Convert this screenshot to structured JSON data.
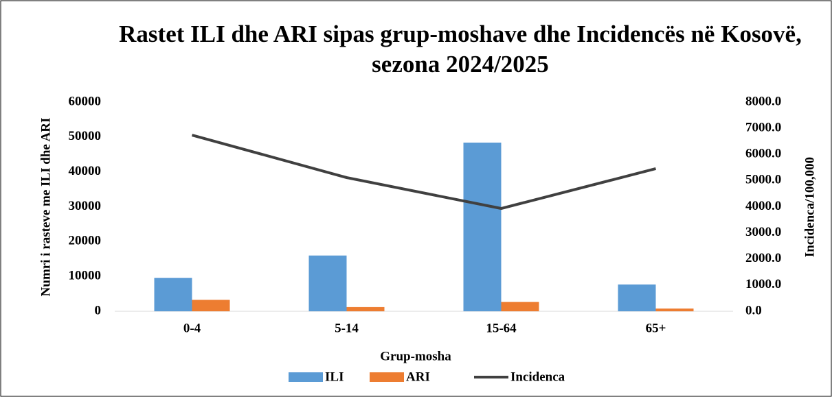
{
  "chart_data": {
    "type": "bar",
    "title": "Rastet ILI dhe ARI sipas grup-moshave dhe Incidencës në Kosovë, sezona 2024/2025",
    "xlabel": "Grup-mosha",
    "ylabel": "Numri i rasteve me ILI dhe ARI",
    "y2label": "Incidenca/100,000",
    "categories": [
      "0-4",
      "5-14",
      "15-64",
      "65+"
    ],
    "series": [
      {
        "name": "ILI",
        "type": "bar",
        "color": "#5b9bd5",
        "values": [
          9600,
          16000,
          48400,
          7700
        ]
      },
      {
        "name": "ARI",
        "type": "bar",
        "color": "#ed7d31",
        "values": [
          3300,
          1200,
          2700,
          800
        ]
      },
      {
        "name": "Incidenca",
        "type": "line",
        "axis": "y2",
        "color": "#404040",
        "values": [
          6740,
          5115,
          3934,
          5456
        ]
      }
    ],
    "ylim": [
      0,
      60000
    ],
    "yticks": [
      0,
      10000,
      20000,
      30000,
      40000,
      50000,
      60000
    ],
    "y2lim": [
      0,
      8000
    ],
    "y2ticks": [
      {
        "value": 0,
        "label": "0.0"
      },
      {
        "value": 1000,
        "label": "1000.0"
      },
      {
        "value": 2000,
        "label": "2000.0"
      },
      {
        "value": 3000,
        "label": "3000.0"
      },
      {
        "value": 4000,
        "label": "4000.0"
      },
      {
        "value": 5000,
        "label": "5000.0"
      },
      {
        "value": 6000,
        "label": "6000.0"
      },
      {
        "value": 7000,
        "label": "7000.0"
      },
      {
        "value": 8000,
        "label": "8000.0"
      }
    ],
    "grid": false,
    "legend": "bottom"
  }
}
